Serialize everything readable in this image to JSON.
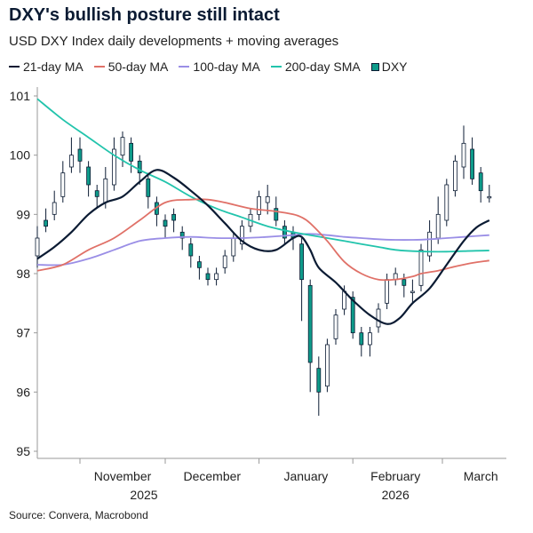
{
  "title": "DXY's bullish posture still intact",
  "subtitle": "USD DXY Index daily developments + moving averages",
  "source": "Source: Convera, Macrobond",
  "legend": [
    {
      "label": "21-day MA",
      "color": "#0b1b33",
      "kind": "line"
    },
    {
      "label": "50-day MA",
      "color": "#e07168",
      "kind": "line"
    },
    {
      "label": "100-day MA",
      "color": "#9a8ee6",
      "kind": "line"
    },
    {
      "label": "200-day SMA",
      "color": "#22c4ac",
      "kind": "line"
    },
    {
      "label": "DXY",
      "color": "#0e9b8a",
      "kind": "box"
    }
  ],
  "chart_data": {
    "type": "line",
    "title": "DXY's bullish posture still intact",
    "subtitle": "USD DXY Index daily developments + moving averages",
    "ylim": [
      95,
      101
    ],
    "yticks": [
      "95",
      "96",
      "97",
      "98",
      "99",
      "100",
      "101"
    ],
    "x_domain": [
      0,
      110
    ],
    "x_month_labels": [
      {
        "label": "November",
        "x": 20
      },
      {
        "label": "December",
        "x": 41
      },
      {
        "label": "January",
        "x": 63
      },
      {
        "label": "February",
        "x": 84
      },
      {
        "label": "March",
        "x": 104
      }
    ],
    "x_year_labels": [
      {
        "label": "2025",
        "x": 25
      },
      {
        "label": "2026",
        "x": 84
      }
    ],
    "x_ticks": [
      10,
      30,
      52,
      74,
      95
    ],
    "grid": false,
    "legend_position": "top",
    "series": [
      {
        "name": "21-day MA",
        "color": "#0b1b33",
        "x": [
          0,
          4,
          8,
          12,
          16,
          20,
          24,
          28,
          32,
          36,
          40,
          44,
          48,
          52,
          56,
          60,
          62,
          64,
          66,
          70,
          74,
          78,
          82,
          85,
          88,
          92,
          96,
          100,
          103,
          106
        ],
        "y": [
          98.25,
          98.45,
          98.7,
          99.0,
          99.2,
          99.3,
          99.55,
          99.75,
          99.62,
          99.4,
          99.15,
          98.85,
          98.55,
          98.4,
          98.4,
          98.6,
          98.62,
          98.4,
          98.1,
          97.85,
          97.55,
          97.3,
          97.15,
          97.25,
          97.5,
          97.75,
          98.15,
          98.55,
          98.78,
          98.9
        ]
      },
      {
        "name": "50-day MA",
        "color": "#e07168",
        "x": [
          0,
          6,
          12,
          18,
          24,
          30,
          36,
          40,
          44,
          50,
          56,
          60,
          62,
          64,
          68,
          72,
          76,
          80,
          84,
          88,
          90,
          94,
          98,
          102,
          106
        ],
        "y": [
          98.05,
          98.15,
          98.4,
          98.6,
          98.9,
          99.2,
          99.25,
          99.25,
          99.2,
          99.1,
          99.05,
          99.0,
          98.95,
          98.85,
          98.55,
          98.2,
          98.0,
          97.9,
          97.9,
          97.95,
          98.0,
          98.05,
          98.12,
          98.18,
          98.22
        ]
      },
      {
        "name": "100-day MA",
        "color": "#9a8ee6",
        "x": [
          0,
          6,
          12,
          18,
          24,
          30,
          36,
          42,
          48,
          54,
          60,
          64,
          68,
          72,
          76,
          80,
          84,
          88,
          92,
          96,
          100,
          106
        ],
        "y": [
          98.15,
          98.15,
          98.25,
          98.4,
          98.55,
          98.6,
          98.62,
          98.6,
          98.6,
          98.62,
          98.65,
          98.67,
          98.65,
          98.62,
          98.6,
          98.58,
          98.57,
          98.57,
          98.58,
          98.6,
          98.62,
          98.65
        ]
      },
      {
        "name": "200-day SMA",
        "color": "#22c4ac",
        "x": [
          0,
          6,
          12,
          18,
          24,
          30,
          36,
          42,
          48,
          54,
          60,
          64,
          68,
          72,
          76,
          80,
          84,
          88,
          92,
          96,
          100,
          106
        ],
        "y": [
          100.95,
          100.6,
          100.3,
          100.0,
          99.75,
          99.55,
          99.3,
          99.1,
          98.95,
          98.8,
          98.7,
          98.65,
          98.6,
          98.55,
          98.5,
          98.45,
          98.4,
          98.38,
          98.37,
          98.37,
          98.38,
          98.39
        ]
      },
      {
        "name": "DXY",
        "color": "#0e9b8a",
        "kind": "candles",
        "x": [
          0,
          2,
          4,
          6,
          8,
          10,
          12,
          14,
          16,
          18,
          20,
          22,
          24,
          26,
          28,
          30,
          32,
          34,
          36,
          38,
          40,
          42,
          44,
          46,
          48,
          50,
          52,
          54,
          56,
          58,
          60,
          62,
          64,
          66,
          68,
          70,
          72,
          74,
          76,
          78,
          80,
          82,
          84,
          86,
          88,
          90,
          92,
          94,
          96,
          98,
          100,
          102,
          104,
          106
        ],
        "open": [
          98.3,
          98.9,
          99.0,
          99.3,
          99.8,
          100.1,
          99.8,
          99.4,
          99.2,
          99.5,
          100.0,
          100.2,
          99.9,
          99.6,
          99.2,
          98.9,
          99.0,
          98.7,
          98.5,
          98.2,
          98.0,
          97.9,
          98.1,
          98.3,
          98.5,
          98.8,
          99.0,
          99.2,
          99.1,
          98.8,
          98.7,
          98.5,
          97.8,
          96.4,
          96.1,
          96.9,
          97.4,
          97.6,
          97.0,
          96.8,
          97.1,
          97.5,
          97.9,
          97.9,
          97.7,
          97.8,
          98.3,
          98.6,
          98.9,
          99.4,
          99.8,
          100.1,
          99.7,
          99.3
        ],
        "close": [
          98.6,
          98.8,
          99.2,
          99.7,
          100.0,
          99.9,
          99.5,
          99.3,
          99.6,
          100.1,
          100.3,
          99.9,
          99.7,
          99.3,
          99.0,
          98.8,
          98.9,
          98.6,
          98.3,
          98.1,
          97.9,
          98.0,
          98.3,
          98.6,
          98.8,
          99.0,
          99.3,
          99.3,
          98.9,
          98.6,
          98.6,
          97.9,
          96.5,
          96.0,
          96.8,
          97.3,
          97.7,
          97.0,
          96.8,
          97.0,
          97.4,
          97.9,
          98.0,
          97.8,
          97.7,
          98.4,
          98.7,
          99.0,
          99.5,
          99.9,
          100.2,
          99.6,
          99.4,
          99.3
        ],
        "high": [
          98.8,
          99.1,
          99.4,
          99.9,
          100.3,
          100.3,
          99.9,
          99.5,
          99.8,
          100.3,
          100.4,
          100.3,
          100.0,
          99.7,
          99.3,
          99.0,
          99.1,
          98.8,
          98.6,
          98.3,
          98.1,
          98.1,
          98.4,
          98.7,
          98.9,
          99.1,
          99.4,
          99.5,
          99.3,
          98.9,
          98.8,
          98.6,
          97.9,
          96.6,
          96.9,
          97.4,
          97.8,
          97.7,
          97.1,
          97.1,
          97.5,
          98.0,
          98.1,
          98.0,
          97.9,
          98.5,
          98.9,
          99.3,
          99.6,
          100.0,
          100.5,
          100.3,
          99.8,
          99.5
        ],
        "low": [
          98.1,
          98.7,
          98.9,
          99.2,
          99.7,
          99.7,
          99.3,
          99.1,
          99.1,
          99.4,
          99.8,
          99.7,
          99.5,
          99.1,
          98.8,
          98.6,
          98.7,
          98.4,
          98.1,
          97.9,
          97.8,
          97.8,
          98.0,
          98.2,
          98.4,
          98.7,
          98.9,
          99.0,
          98.8,
          98.5,
          98.4,
          97.2,
          96.0,
          95.6,
          96.0,
          96.8,
          97.3,
          96.9,
          96.6,
          96.6,
          97.0,
          97.4,
          97.8,
          97.6,
          97.5,
          97.7,
          98.2,
          98.5,
          98.8,
          99.3,
          99.6,
          99.5,
          99.2,
          99.2
        ]
      }
    ]
  }
}
